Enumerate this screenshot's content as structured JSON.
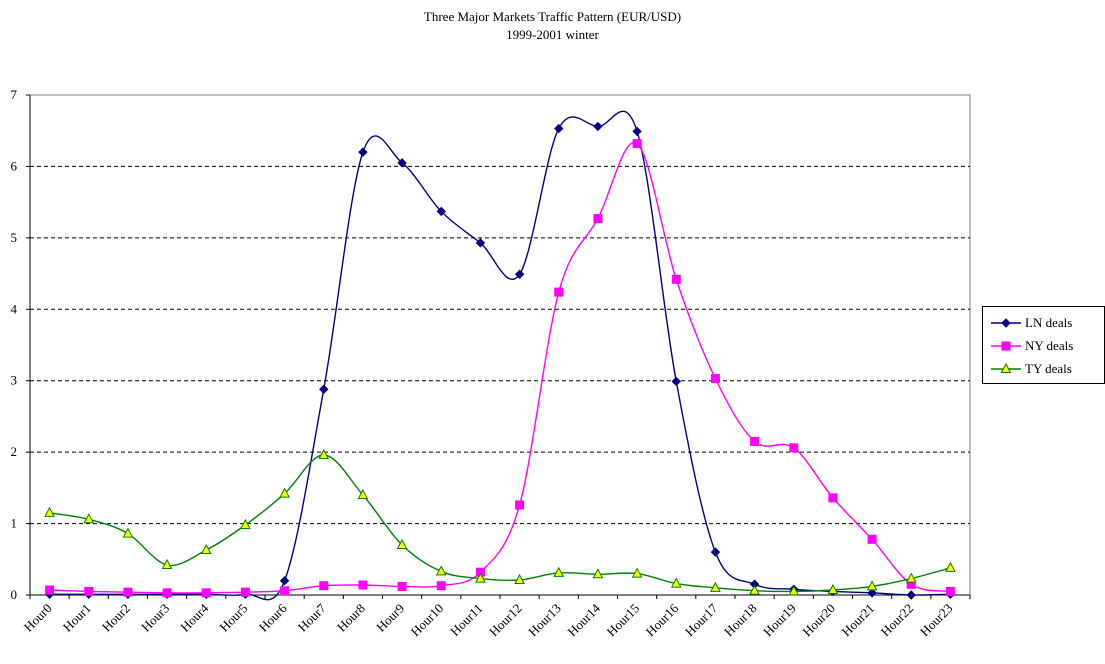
{
  "chart_data": {
    "type": "line",
    "title": "Three Major Markets Traffic Pattern (EUR/USD)",
    "subtitle": "1999-2001 winter",
    "xlabel": "",
    "ylabel": "",
    "categories": [
      "Hour0",
      "Hour1",
      "Hour2",
      "Hour3",
      "Hour4",
      "Hour5",
      "Hour6",
      "Hour7",
      "Hour8",
      "Hour9",
      "Hour10",
      "Hour11",
      "Hour12",
      "Hour13",
      "Hour14",
      "Hour15",
      "Hour16",
      "Hour17",
      "Hour18",
      "Hour19",
      "Hour20",
      "Hour21",
      "Hour22",
      "Hour23"
    ],
    "ylim": [
      0,
      7
    ],
    "yticks": [
      0,
      1,
      2,
      3,
      4,
      5,
      6,
      7
    ],
    "grid": "horizontal-dashed",
    "smooth": true,
    "legend": "right",
    "series": [
      {
        "name": "LN deals",
        "color": "#000080",
        "marker": "diamond",
        "values": [
          0.01,
          0.01,
          0.01,
          0.01,
          0.01,
          0.01,
          0.2,
          2.88,
          6.2,
          6.05,
          5.37,
          4.93,
          4.49,
          6.53,
          6.56,
          6.49,
          2.99,
          0.6,
          0.15,
          0.08,
          0.05,
          0.03,
          0.0,
          0.01
        ]
      },
      {
        "name": "NY deals",
        "color": "#ff00ff",
        "marker": "square",
        "values": [
          0.07,
          0.05,
          0.04,
          0.03,
          0.03,
          0.04,
          0.06,
          0.13,
          0.14,
          0.12,
          0.13,
          0.32,
          1.26,
          4.24,
          5.27,
          6.32,
          4.42,
          3.03,
          2.15,
          2.06,
          1.36,
          0.78,
          0.15,
          0.05
        ]
      },
      {
        "name": "TY deals",
        "color": "#008000",
        "marker": "triangle",
        "values": [
          1.15,
          1.06,
          0.86,
          0.42,
          0.63,
          0.98,
          1.42,
          1.96,
          1.4,
          0.7,
          0.33,
          0.23,
          0.21,
          0.31,
          0.29,
          0.3,
          0.16,
          0.1,
          0.06,
          0.05,
          0.07,
          0.12,
          0.23,
          0.38
        ]
      }
    ]
  }
}
